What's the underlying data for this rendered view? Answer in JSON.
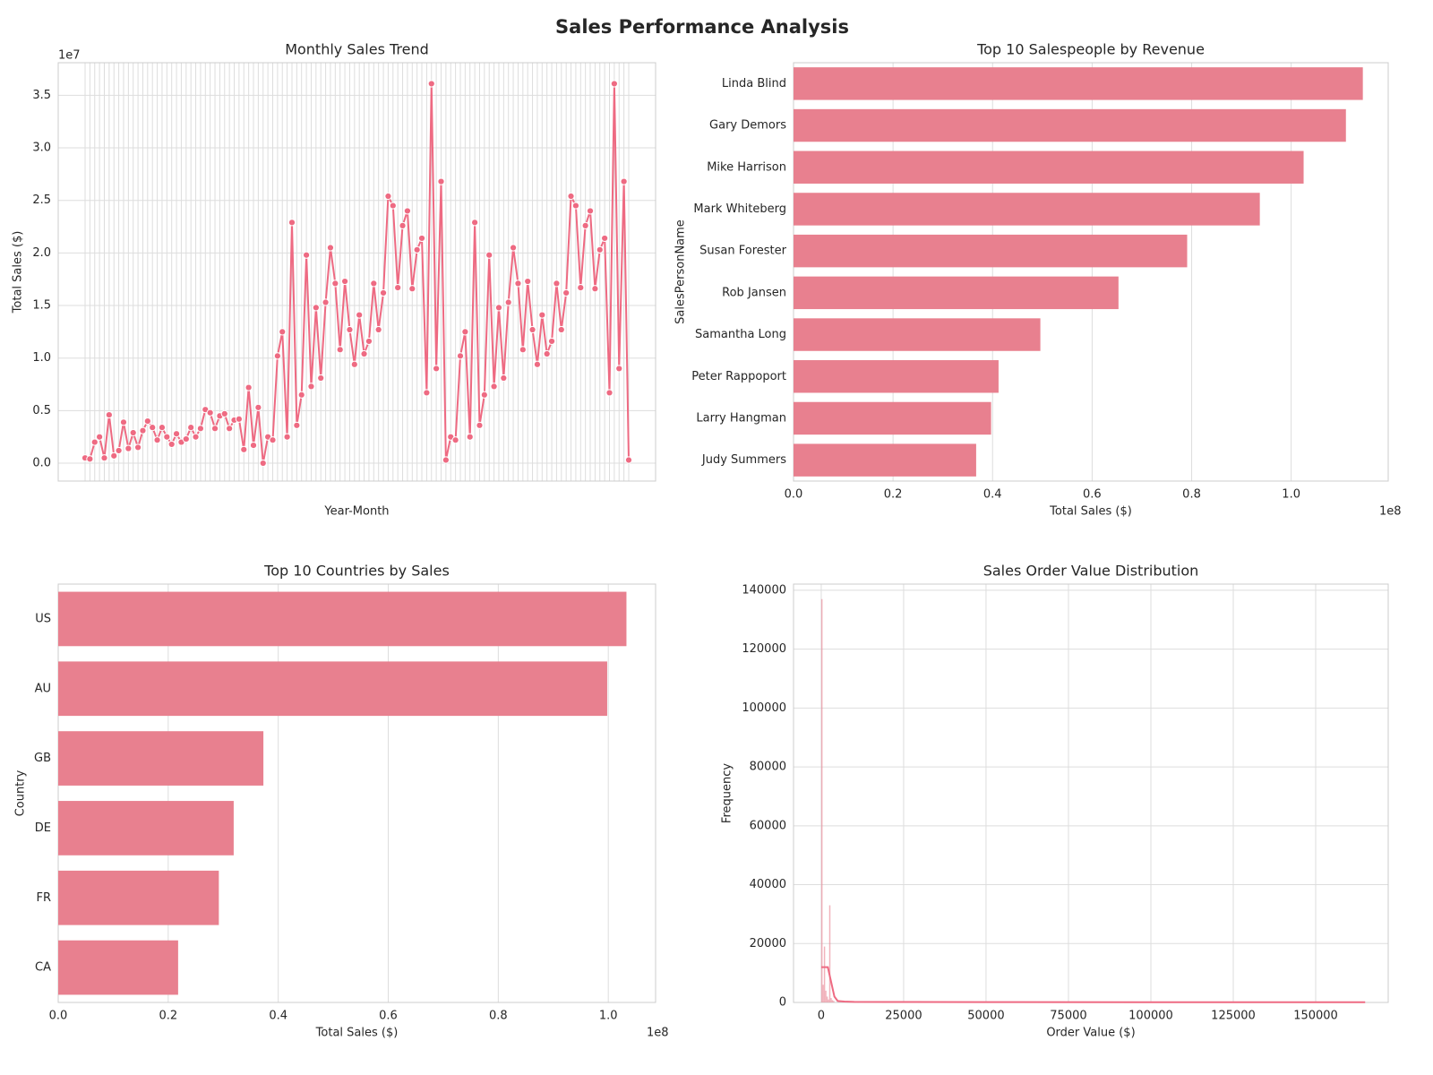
{
  "title": "Sales Performance Analysis",
  "chart_data": [
    {
      "type": "line",
      "title": "Monthly Sales Trend",
      "xlabel": "Year-Month",
      "ylabel": "Total Sales ($)",
      "offset_label": "1e7",
      "color": "#ee6a82",
      "values": [
        0.05,
        0.04,
        0.2,
        0.25,
        0.05,
        0.46,
        0.07,
        0.12,
        0.39,
        0.14,
        0.29,
        0.15,
        0.31,
        0.4,
        0.34,
        0.22,
        0.34,
        0.25,
        0.18,
        0.28,
        0.2,
        0.23,
        0.34,
        0.25,
        0.33,
        0.51,
        0.48,
        0.33,
        0.45,
        0.47,
        0.33,
        0.41,
        0.42,
        0.13,
        0.72,
        0.17,
        0.53,
        0.0,
        0.25,
        0.22,
        1.02,
        1.25,
        0.25,
        2.29,
        0.36,
        0.65,
        1.98,
        0.73,
        1.48,
        0.81,
        1.53,
        2.05,
        1.71,
        1.08,
        1.73,
        1.27,
        0.94,
        1.41,
        1.04,
        1.16,
        1.71,
        1.27,
        1.62,
        2.54,
        2.45,
        1.67,
        2.26,
        2.4,
        1.66,
        2.03,
        2.14,
        0.67,
        3.61,
        0.9,
        2.68,
        0.03,
        0.25,
        0.22,
        1.02,
        1.25,
        0.25,
        2.29,
        0.36,
        0.65,
        1.98,
        0.73,
        1.48,
        0.81,
        1.53,
        2.05,
        1.71,
        1.08,
        1.73,
        1.27,
        0.94,
        1.41,
        1.04,
        1.16,
        1.71,
        1.27,
        1.62,
        2.54,
        2.45,
        1.67,
        2.26,
        2.4,
        1.66,
        2.03,
        2.14,
        0.67,
        3.61,
        0.9,
        2.68,
        0.03
      ],
      "ylim": [
        -0.17,
        3.81
      ],
      "yticks": [
        {
          "value": 0,
          "label": "0.0"
        },
        0.5,
        {
          "value": 1,
          "label": "1.0"
        },
        1.5,
        {
          "value": 2,
          "label": "2.0"
        },
        2.5,
        {
          "value": 3,
          "label": "3.0"
        },
        3.5
      ],
      "grid": true
    },
    {
      "type": "hbar",
      "title": "Top 10 Salespeople by Revenue",
      "xlabel": "Total Sales ($)",
      "ylabel": "SalesPersonName",
      "offset_label": "1e8",
      "color": "#e8808f",
      "categories": [
        "Linda Blind",
        "Gary Demors",
        "Mike Harrison",
        "Mark Whiteberg",
        "Susan Forester",
        "Rob Jansen",
        "Samantha Long",
        "Peter Rappoport",
        "Larry Hangman",
        "Judy Summers"
      ],
      "values": [
        1.144,
        1.11,
        1.025,
        0.937,
        0.791,
        0.653,
        0.496,
        0.412,
        0.397,
        0.367
      ],
      "xlim": [
        0,
        1.195
      ],
      "xticks": [
        {
          "value": 0,
          "label": "0.0"
        },
        0.2,
        0.4,
        0.6,
        0.8,
        {
          "value": 1,
          "label": "1.0"
        }
      ],
      "grid": true
    },
    {
      "type": "hbar",
      "title": "Top 10 Countries by Sales",
      "xlabel": "Total Sales ($)",
      "ylabel": "Country",
      "offset_label": "1e8",
      "color": "#e8808f",
      "categories": [
        "US",
        "AU",
        "GB",
        "DE",
        "FR",
        "CA"
      ],
      "values": [
        1.033,
        0.998,
        0.373,
        0.319,
        0.292,
        0.218
      ],
      "xlim": [
        0,
        1.086
      ],
      "xticks": [
        {
          "value": 0,
          "label": "0.0"
        },
        0.2,
        0.4,
        0.6,
        0.8,
        {
          "value": 1,
          "label": "1.0"
        }
      ],
      "grid": true
    },
    {
      "type": "histogram",
      "title": "Sales Order Value Distribution",
      "xlabel": "Order Value ($)",
      "ylabel": "Frequency",
      "color": "#e8808f",
      "bins": [
        0,
        400,
        800,
        1200,
        1600,
        2000,
        2400,
        2800,
        3200,
        3600,
        4000
      ],
      "counts": [
        137000,
        6000,
        19000,
        4000,
        2000,
        1000,
        33000,
        1500,
        800,
        500
      ],
      "kde": {
        "x": [
          0,
          1000,
          2000,
          3000,
          4000,
          5000,
          7000,
          10000,
          20000,
          50000,
          100000,
          165000
        ],
        "values": [
          12000,
          12000,
          12000,
          7000,
          2000,
          500,
          300,
          200,
          150,
          100,
          80,
          60
        ]
      },
      "xlim": [
        -8400,
        172000
      ],
      "ylim": [
        0,
        142100
      ],
      "xticks": [
        0,
        25000,
        50000,
        75000,
        100000,
        125000,
        150000
      ],
      "yticks": [
        0,
        20000,
        40000,
        60000,
        80000,
        100000,
        120000,
        140000
      ],
      "grid": true
    }
  ]
}
